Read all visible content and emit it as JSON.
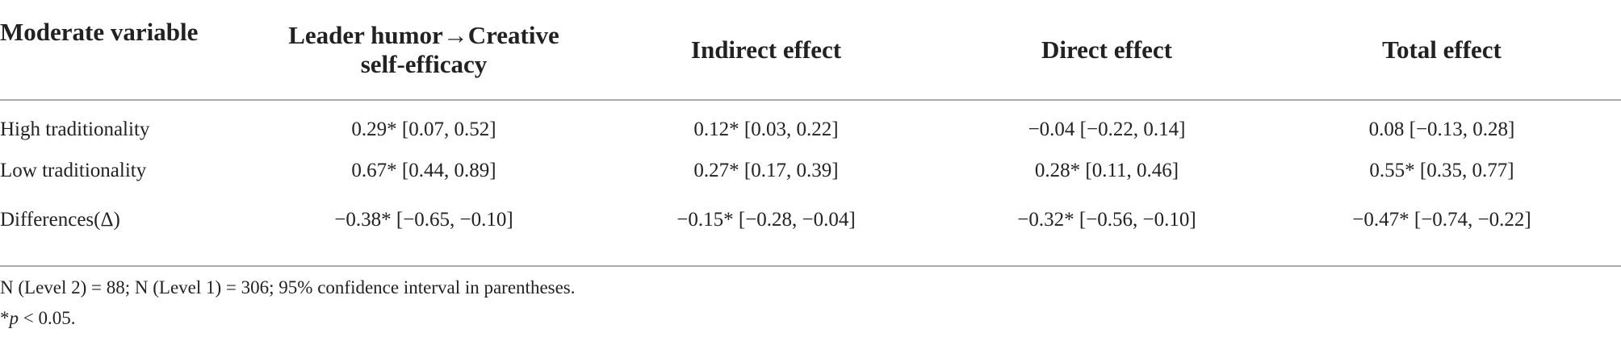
{
  "table": {
    "header": [
      "Moderate variable",
      "Leader humor→Creative self-efficacy",
      "Indirect effect",
      "Direct effect",
      "Total effect"
    ],
    "rows": [
      [
        "High traditionality",
        "0.29* [0.07, 0.52]",
        "0.12* [0.03, 0.22]",
        "−0.04 [−0.22, 0.14]",
        "0.08 [−0.13, 0.28]"
      ],
      [
        "Low traditionality",
        "0.67* [0.44, 0.89]",
        "0.27* [0.17, 0.39]",
        "0.28* [0.11, 0.46]",
        "0.55* [0.35, 0.77]"
      ],
      [
        "Differences(Δ)",
        "−0.38* [−0.65, −0.10]",
        "−0.15* [−0.28, −0.04]",
        "−0.32* [−0.56, −0.10]",
        "−0.47* [−0.74, −0.22]"
      ]
    ]
  },
  "notes": {
    "line1": "N (Level 2) = 88; N (Level 1) = 306; 95% confidence interval in parentheses.",
    "line2": {
      "prefix": "*",
      "italic": "p",
      "rest": " < 0.05."
    }
  }
}
